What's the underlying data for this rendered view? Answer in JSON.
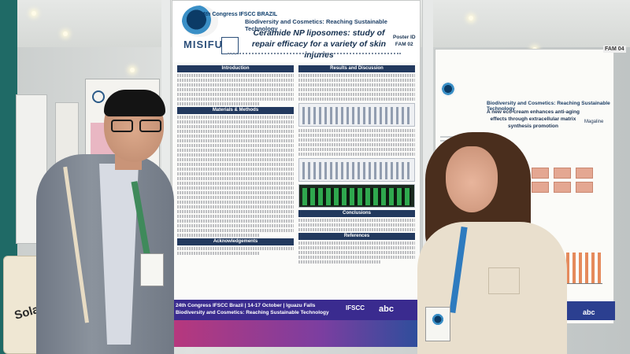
{
  "poster_main": {
    "org_logo_text": "24th Congress IFSCC BRAZIL",
    "brand": "MISIFU",
    "theme": "Biodiversity and Cosmetics: Reaching Sustainable Technology",
    "title": "Ceramide NP liposomes: study of repair efficacy for a variety of skin injuries",
    "poster_id": "Poster ID",
    "poster_code": "FAM 02",
    "sections": {
      "intro": "Introduction",
      "methods": "Materials & Methods",
      "results": "Results and Discussion",
      "conclusions": "Conclusions",
      "acknowledgements": "Acknowledgements",
      "references": "References"
    },
    "footer": "24th Congress IFSCC Brazil | 14-17 October | Iguazu Falls\nBiodiversity and Cosmetics: Reaching Sustainable Technology",
    "footer_org": "IFSCC",
    "footer_sponsor": "abc"
  },
  "poster_right": {
    "poster_code": "FAM 04",
    "theme": "Biodiversity and Cosmetics: Reaching Sustainable Technology",
    "title": "A new eco-cream enhances anti-aging effects through extracellular matrix synthesis promotion",
    "brand": "Magaline",
    "sponsor": "abc"
  },
  "tote_bag": {
    "text": "Solar"
  }
}
